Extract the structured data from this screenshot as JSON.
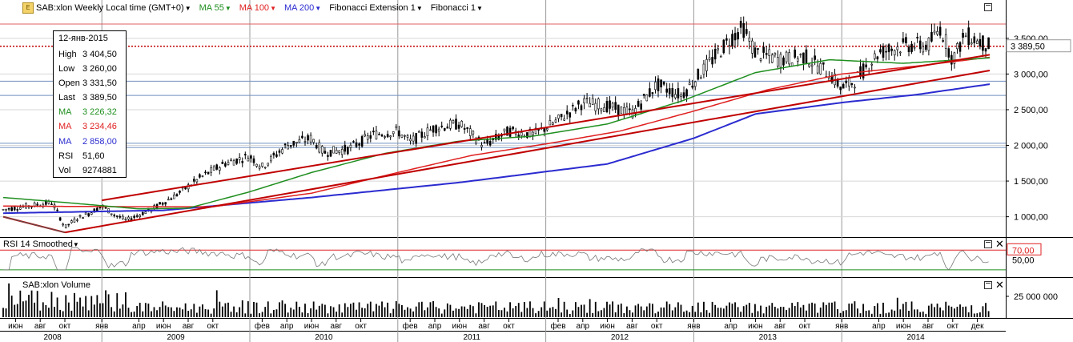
{
  "header": {
    "symbol": "SAB:xlon Weekly Local time (GMT+0)",
    "ma55": "MA 55",
    "ma100": "MA 100",
    "ma200": "MA 200",
    "fib_ext": "Fibonacci Extension 1",
    "fib": "Fibonacci 1"
  },
  "info": {
    "date": "12-янв-2015",
    "rows": [
      {
        "k": "High",
        "v": "3 404,50",
        "color": "#000000"
      },
      {
        "k": "Low",
        "v": "3 260,00",
        "color": "#000000"
      },
      {
        "k": "Open",
        "v": "3 331,50",
        "color": "#000000"
      },
      {
        "k": "Last",
        "v": "3 389,50",
        "color": "#000000"
      },
      {
        "k": "MA",
        "v": "3 226,32",
        "color": "#1f8f1f"
      },
      {
        "k": "MA",
        "v": "3 234,46",
        "color": "#e02020"
      },
      {
        "k": "MA",
        "v": "2 858,00",
        "color": "#2b2bd0"
      },
      {
        "k": "RSI",
        "v": "51,60",
        "color": "#000000"
      },
      {
        "k": "Vol",
        "v": "9274881",
        "color": "#000000"
      }
    ]
  },
  "rsi_title": "RSI 14 Smoothed",
  "vol_title": "SAB:xlon Volume",
  "price_axis": [
    "3 500,00",
    "3 000,00",
    "2 500,00",
    "2 000,00",
    "1 500,00",
    "1 000,00"
  ],
  "price_axis_values": [
    3500,
    3000,
    2500,
    2000,
    1500,
    1000
  ],
  "last_price_label": "3 389,50",
  "rsi_axis": {
    "upper": "70,00",
    "mid": "50,00"
  },
  "vol_axis": "25 000 000",
  "months": [
    "июн",
    "авг",
    "окт",
    "янв",
    "апр",
    "июн",
    "авг",
    "окт",
    "фев",
    "апр",
    "июн",
    "авг",
    "окт",
    "фев",
    "апр",
    "июн",
    "авг",
    "окт",
    "фев",
    "апр",
    "июн",
    "авг",
    "окт",
    "янв",
    "апр",
    "июн",
    "авг",
    "окт",
    "янв",
    "апр",
    "июн",
    "авг",
    "окт",
    "дек"
  ],
  "years": [
    "2008",
    "2009",
    "2010",
    "2011",
    "2012",
    "2013",
    "2014"
  ],
  "colors": {
    "ma55": "#1f8f1f",
    "ma100": "#e02020",
    "ma200": "#2b2bd0",
    "fib_line": "#c00000",
    "candle": "#000000"
  },
  "chart_data": {
    "type": "candlestick",
    "x_range": [
      "2008-05",
      "2015-01"
    ],
    "ylim": [
      760,
      3880
    ],
    "last": 3389.5,
    "price_path": [
      [
        "2008-05",
        1100
      ],
      [
        "2008-07",
        1150
      ],
      [
        "2008-09",
        1200
      ],
      [
        "2008-10",
        850
      ],
      [
        "2008-11",
        980
      ],
      [
        "2008-12",
        1050
      ],
      [
        "2009-01",
        1150
      ],
      [
        "2009-02",
        1030
      ],
      [
        "2009-03",
        950
      ],
      [
        "2009-05",
        1100
      ],
      [
        "2009-07",
        1300
      ],
      [
        "2009-09",
        1550
      ],
      [
        "2009-11",
        1750
      ],
      [
        "2010-01",
        1850
      ],
      [
        "2010-02",
        1700
      ],
      [
        "2010-04",
        2000
      ],
      [
        "2010-06",
        2100
      ],
      [
        "2010-07",
        1900
      ],
      [
        "2010-09",
        1950
      ],
      [
        "2010-11",
        2150
      ],
      [
        "2011-01",
        2200
      ],
      [
        "2011-02",
        2050
      ],
      [
        "2011-04",
        2250
      ],
      [
        "2011-06",
        2300
      ],
      [
        "2011-08",
        2000
      ],
      [
        "2011-10",
        2200
      ],
      [
        "2011-12",
        2150
      ],
      [
        "2012-02",
        2350
      ],
      [
        "2012-04",
        2600
      ],
      [
        "2012-06",
        2550
      ],
      [
        "2012-08",
        2450
      ],
      [
        "2012-10",
        2850
      ],
      [
        "2012-12",
        2700
      ],
      [
        "2013-02",
        3100
      ],
      [
        "2013-04",
        3500
      ],
      [
        "2013-05",
        3650
      ],
      [
        "2013-06",
        3300
      ],
      [
        "2013-08",
        3200
      ],
      [
        "2013-10",
        3250
      ],
      [
        "2013-12",
        3000
      ],
      [
        "2014-01",
        2800
      ],
      [
        "2014-02",
        2900
      ],
      [
        "2014-04",
        3300
      ],
      [
        "2014-06",
        3400
      ],
      [
        "2014-08",
        3400
      ],
      [
        "2014-09",
        3650
      ],
      [
        "2014-10",
        3200
      ],
      [
        "2014-11",
        3550
      ],
      [
        "2015-01",
        3389.5
      ]
    ],
    "ma55_path": [
      [
        "2008-05",
        1270
      ],
      [
        "2008-10",
        1200
      ],
      [
        "2009-04",
        1110
      ],
      [
        "2009-08",
        1120
      ],
      [
        "2010-01",
        1350
      ],
      [
        "2010-06",
        1620
      ],
      [
        "2010-12",
        1890
      ],
      [
        "2011-06",
        2060
      ],
      [
        "2011-12",
        2130
      ],
      [
        "2012-06",
        2300
      ],
      [
        "2012-12",
        2620
      ],
      [
        "2013-06",
        3020
      ],
      [
        "2013-12",
        3200
      ],
      [
        "2014-06",
        3150
      ],
      [
        "2015-01",
        3226.32
      ]
    ],
    "ma100_path": [
      [
        "2008-05",
        1150
      ],
      [
        "2009-04",
        1140
      ],
      [
        "2009-10",
        1140
      ],
      [
        "2010-06",
        1330
      ],
      [
        "2011-01",
        1620
      ],
      [
        "2011-07",
        1860
      ],
      [
        "2012-01",
        2020
      ],
      [
        "2012-07",
        2200
      ],
      [
        "2013-01",
        2480
      ],
      [
        "2013-07",
        2780
      ],
      [
        "2014-01",
        3000
      ],
      [
        "2014-07",
        3110
      ],
      [
        "2015-01",
        3234.46
      ]
    ],
    "ma200_path": [
      [
        "2008-05",
        1050
      ],
      [
        "2009-06",
        1090
      ],
      [
        "2010-06",
        1270
      ],
      [
        "2011-06",
        1480
      ],
      [
        "2012-06",
        1740
      ],
      [
        "2013-01",
        2100
      ],
      [
        "2013-06",
        2440
      ],
      [
        "2014-01",
        2600
      ],
      [
        "2014-07",
        2710
      ],
      [
        "2015-01",
        2858.0
      ]
    ],
    "fib_lines": [
      {
        "from": [
          "2008-05",
          1000
        ],
        "to": [
          "2008-10",
          780
        ]
      },
      {
        "from": [
          "2008-10",
          780
        ],
        "to": [
          "2015-01",
          3050
        ]
      },
      {
        "from": [
          "2009-01",
          1230
        ],
        "to": [
          "2015-01",
          3270
        ]
      }
    ],
    "hlines": [
      3700,
      3389.5,
      2900,
      2700,
      1970,
      2030
    ],
    "rsi": {
      "name": "RSI 14 Smoothed",
      "period": 14,
      "upper": 70,
      "lower": 30,
      "last": 51.6
    },
    "volume": {
      "last": 9274881,
      "ref": 25000000
    }
  }
}
